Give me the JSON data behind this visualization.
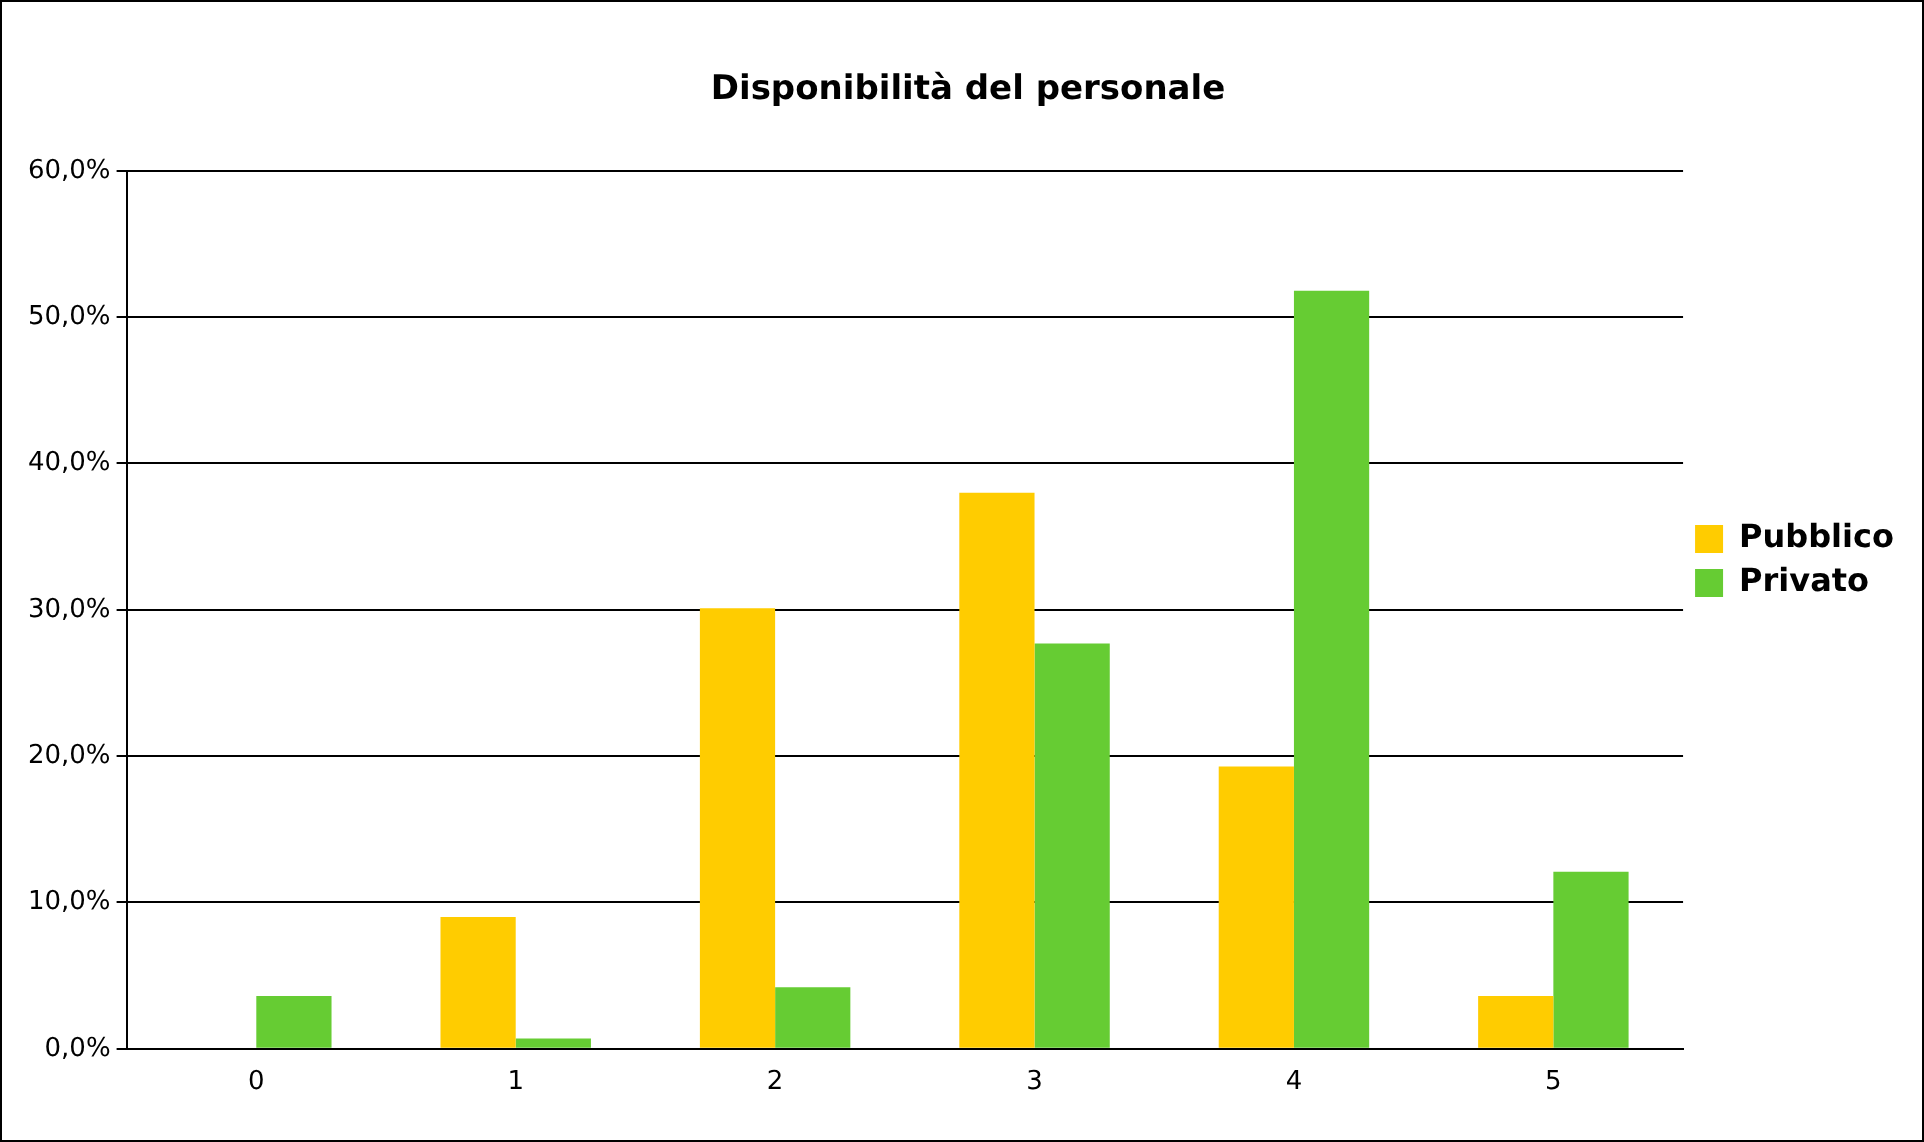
{
  "chart_data": {
    "type": "bar",
    "title": "Disponibilità del personale",
    "categories": [
      "0",
      "1",
      "2",
      "3",
      "4",
      "5"
    ],
    "series": [
      {
        "name": "Pubblico",
        "color": "#ffcc00",
        "values": [
          0,
          9.0,
          30.1,
          38.0,
          19.3,
          3.6
        ]
      },
      {
        "name": "Privato",
        "color": "#66cc33",
        "values": [
          3.6,
          0.7,
          4.2,
          27.7,
          51.8,
          12.1
        ]
      }
    ],
    "ylim": [
      0,
      60
    ],
    "yticks": [
      {
        "value": 0,
        "label": "0,0%"
      },
      {
        "value": 10,
        "label": "10,0%"
      },
      {
        "value": 20,
        "label": "20,0%"
      },
      {
        "value": 30,
        "label": "30,0%"
      },
      {
        "value": 40,
        "label": "40,0%"
      },
      {
        "value": 50,
        "label": "50,0%"
      },
      {
        "value": 60,
        "label": "60,0%"
      }
    ],
    "grid": "y",
    "legend": "right"
  }
}
